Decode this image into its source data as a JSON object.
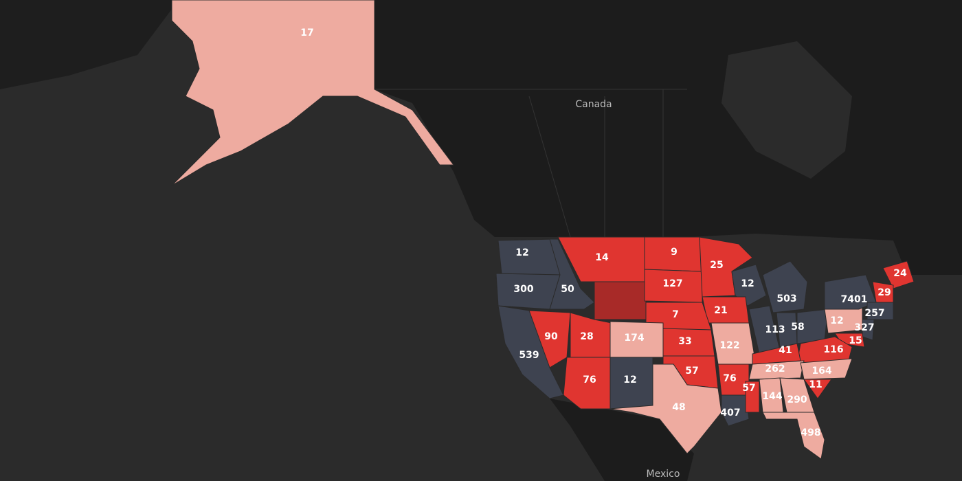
{
  "map": {
    "labels": [
      "Canada",
      "Mexico"
    ],
    "regions": [
      {
        "value": 17,
        "color": "#eeaba0"
      },
      {
        "value": 12,
        "color": "#3e4350"
      },
      {
        "value": 300,
        "color": "#3e4350"
      },
      {
        "value": 50,
        "color": "#3e4350"
      },
      {
        "value": 14,
        "color": "#e03530"
      },
      {
        "value": null,
        "color": "#a82a28"
      },
      {
        "value": 9,
        "color": "#e03530"
      },
      {
        "value": 127,
        "color": "#e03530"
      },
      {
        "value": 25,
        "color": "#e03530"
      },
      {
        "value": 12,
        "color": "#3e4350"
      },
      {
        "value": 503,
        "color": "#3e4350"
      },
      {
        "value": 21,
        "color": "#e03530"
      },
      {
        "value": 7,
        "color": "#e03530"
      },
      {
        "value": 90,
        "color": "#e03530"
      },
      {
        "value": 28,
        "color": "#e03530"
      },
      {
        "value": 174,
        "color": "#eeaba0"
      },
      {
        "value": 33,
        "color": "#e03530"
      },
      {
        "value": 122,
        "color": "#eeaba0"
      },
      {
        "value": 113,
        "color": "#3e4350"
      },
      {
        "value": 58,
        "color": "#3e4350"
      },
      {
        "value": null,
        "color": "#3e4350"
      },
      {
        "value": 12,
        "color": "#eeaba0"
      },
      {
        "value": 7401,
        "color": "#3e4350"
      },
      {
        "value": 24,
        "color": "#e03530"
      },
      {
        "value": 29,
        "color": "#e03530"
      },
      {
        "value": 257,
        "color": "#3e4350"
      },
      {
        "value": 327,
        "color": "#3e4350"
      },
      {
        "value": 15,
        "color": "#e03530"
      },
      {
        "value": 116,
        "color": "#e03530"
      },
      {
        "value": 41,
        "color": "#e03530"
      },
      {
        "value": 539,
        "color": "#3e4350"
      },
      {
        "value": 76,
        "color": "#e03530"
      },
      {
        "value": 12,
        "color": "#3e4350"
      },
      {
        "value": 57,
        "color": "#e03530"
      },
      {
        "value": 48,
        "color": "#eeaba0"
      },
      {
        "value": 76,
        "color": "#e03530"
      },
      {
        "value": 407,
        "color": "#3e4350"
      },
      {
        "value": 57,
        "color": "#e03530"
      },
      {
        "value": 262,
        "color": "#eeaba0"
      },
      {
        "value": 144,
        "color": "#eeaba0"
      },
      {
        "value": 290,
        "color": "#eeaba0"
      },
      {
        "value": 164,
        "color": "#eeaba0"
      },
      {
        "value": 11,
        "color": "#e03530"
      },
      {
        "value": 498,
        "color": "#eeaba0"
      }
    ]
  }
}
